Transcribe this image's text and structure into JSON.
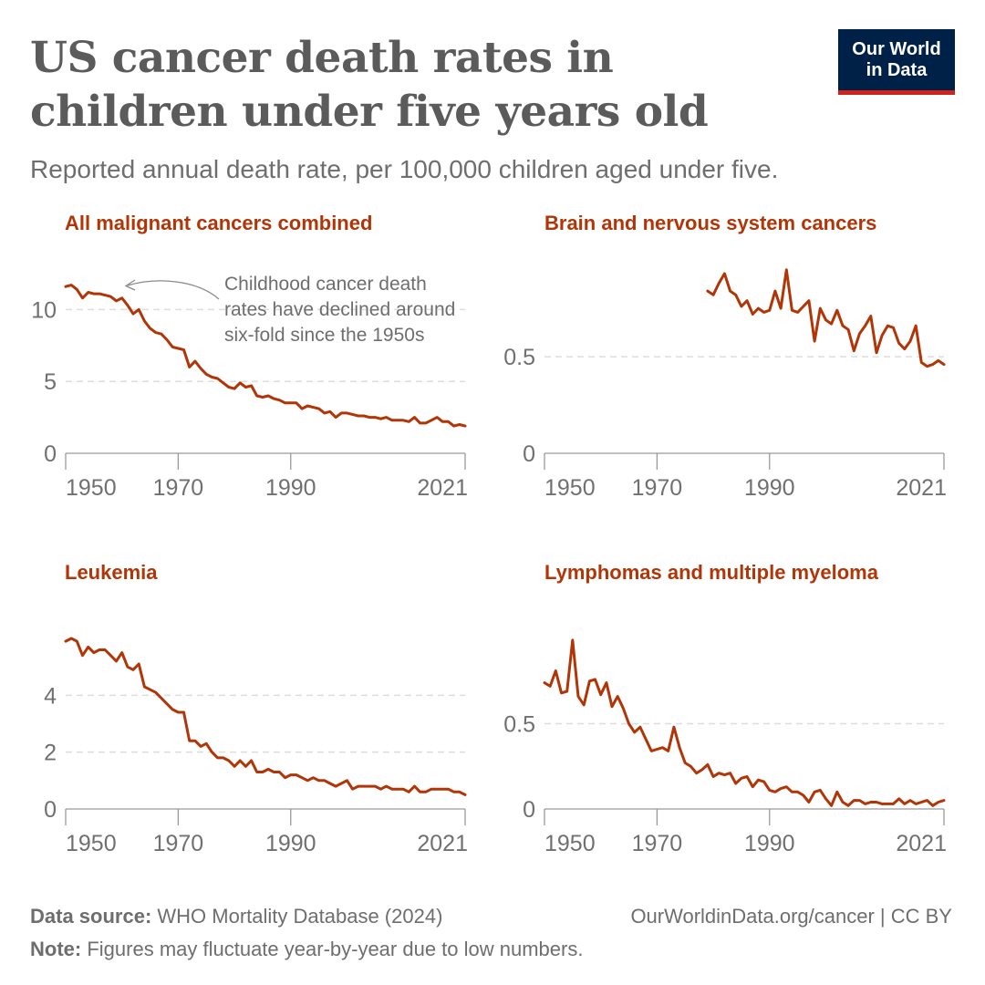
{
  "title": "US cancer death rates in children under five years old",
  "subtitle": "Reported annual death rate, per 100,000 children aged under five.",
  "logo": {
    "line1": "Our World",
    "line2": "in Data"
  },
  "footer": {
    "source_label": "Data source:",
    "source_value": "WHO Mortality Database (2024)",
    "credit": "OurWorldinData.org/cancer | CC BY",
    "note_label": "Note:",
    "note_value": "Figures may fluctuate year-by-year due to low numbers."
  },
  "colors": {
    "series": "#b13507",
    "title": "#5b5b5b",
    "logo_bg": "#002147",
    "logo_bar": "#ce261e"
  },
  "chart_data": [
    {
      "type": "line",
      "title": "All malignant cancers combined",
      "x_ticks": [
        "1950",
        "1970",
        "1990",
        "2021"
      ],
      "y_ticks": [
        "0",
        "5",
        "10"
      ],
      "xlim": [
        1950,
        2021
      ],
      "ylim": [
        0,
        12.5
      ],
      "annotation": [
        "Childhood cancer death",
        "rates have declined around",
        "six-fold since the 1950s"
      ],
      "x": [
        1950,
        1951,
        1952,
        1953,
        1954,
        1955,
        1956,
        1957,
        1958,
        1959,
        1960,
        1961,
        1962,
        1963,
        1964,
        1965,
        1966,
        1967,
        1968,
        1969,
        1970,
        1971,
        1972,
        1973,
        1974,
        1975,
        1976,
        1977,
        1978,
        1979,
        1980,
        1981,
        1982,
        1983,
        1984,
        1985,
        1986,
        1987,
        1988,
        1989,
        1990,
        1991,
        1992,
        1993,
        1994,
        1995,
        1996,
        1997,
        1998,
        1999,
        2000,
        2001,
        2002,
        2003,
        2004,
        2005,
        2006,
        2007,
        2008,
        2009,
        2010,
        2011,
        2012,
        2013,
        2014,
        2015,
        2016,
        2017,
        2018,
        2019,
        2020,
        2021
      ],
      "y": [
        11.6,
        11.7,
        11.4,
        10.8,
        11.2,
        11.1,
        11.1,
        11.0,
        10.9,
        10.6,
        10.8,
        10.3,
        9.7,
        10.0,
        9.2,
        8.7,
        8.4,
        8.3,
        7.9,
        7.4,
        7.3,
        7.2,
        6.0,
        6.4,
        5.9,
        5.5,
        5.3,
        5.2,
        4.9,
        4.6,
        4.5,
        4.9,
        4.6,
        4.7,
        4.0,
        3.9,
        4.0,
        3.8,
        3.7,
        3.5,
        3.5,
        3.5,
        3.1,
        3.3,
        3.2,
        3.1,
        2.8,
        2.9,
        2.5,
        2.8,
        2.8,
        2.7,
        2.6,
        2.6,
        2.5,
        2.5,
        2.4,
        2.5,
        2.3,
        2.3,
        2.3,
        2.2,
        2.5,
        2.1,
        2.1,
        2.3,
        2.5,
        2.2,
        2.2,
        1.9,
        2.0,
        1.9
      ]
    },
    {
      "type": "line",
      "title": "Brain and nervous system cancers",
      "x_ticks": [
        "1950",
        "1970",
        "1990",
        "2021"
      ],
      "y_ticks": [
        "0",
        "0.5"
      ],
      "xlim": [
        1950,
        2021
      ],
      "ylim": [
        0,
        0.93
      ],
      "x": [
        1979,
        1980,
        1981,
        1982,
        1983,
        1984,
        1985,
        1986,
        1987,
        1988,
        1989,
        1990,
        1991,
        1992,
        1993,
        1994,
        1995,
        1996,
        1997,
        1998,
        1999,
        2000,
        2001,
        2002,
        2003,
        2004,
        2005,
        2006,
        2007,
        2008,
        2009,
        2010,
        2011,
        2012,
        2013,
        2014,
        2015,
        2016,
        2017,
        2018,
        2019,
        2020,
        2021
      ],
      "y": [
        0.84,
        0.82,
        0.88,
        0.93,
        0.84,
        0.82,
        0.76,
        0.79,
        0.72,
        0.75,
        0.73,
        0.74,
        0.84,
        0.75,
        0.95,
        0.74,
        0.73,
        0.76,
        0.79,
        0.58,
        0.75,
        0.69,
        0.67,
        0.74,
        0.66,
        0.64,
        0.53,
        0.62,
        0.66,
        0.71,
        0.52,
        0.61,
        0.66,
        0.65,
        0.57,
        0.54,
        0.58,
        0.66,
        0.47,
        0.45,
        0.46,
        0.48,
        0.46
      ]
    },
    {
      "type": "line",
      "title": "Leukemia",
      "x_ticks": [
        "1950",
        "1970",
        "1990",
        "2021"
      ],
      "y_ticks": [
        "0",
        "2",
        "4"
      ],
      "xlim": [
        1950,
        2021
      ],
      "ylim": [
        0,
        6
      ],
      "x": [
        1950,
        1951,
        1952,
        1953,
        1954,
        1955,
        1956,
        1957,
        1958,
        1959,
        1960,
        1961,
        1962,
        1963,
        1964,
        1965,
        1966,
        1967,
        1968,
        1969,
        1970,
        1971,
        1972,
        1973,
        1974,
        1975,
        1976,
        1977,
        1978,
        1979,
        1980,
        1981,
        1982,
        1983,
        1984,
        1985,
        1986,
        1987,
        1988,
        1989,
        1990,
        1991,
        1992,
        1993,
        1994,
        1995,
        1996,
        1997,
        1998,
        1999,
        2000,
        2001,
        2002,
        2003,
        2004,
        2005,
        2006,
        2007,
        2008,
        2009,
        2010,
        2011,
        2012,
        2013,
        2014,
        2015,
        2016,
        2017,
        2018,
        2019,
        2020,
        2021
      ],
      "y": [
        5.9,
        6.0,
        5.9,
        5.4,
        5.7,
        5.5,
        5.6,
        5.6,
        5.4,
        5.2,
        5.5,
        5.0,
        4.9,
        5.1,
        4.3,
        4.2,
        4.1,
        3.9,
        3.7,
        3.5,
        3.4,
        3.4,
        2.4,
        2.4,
        2.2,
        2.3,
        2.0,
        1.8,
        1.8,
        1.7,
        1.5,
        1.7,
        1.5,
        1.7,
        1.3,
        1.3,
        1.4,
        1.3,
        1.3,
        1.1,
        1.2,
        1.2,
        1.1,
        1.0,
        1.1,
        1.0,
        1.0,
        0.9,
        0.8,
        0.9,
        1.0,
        0.7,
        0.8,
        0.8,
        0.8,
        0.8,
        0.7,
        0.8,
        0.7,
        0.7,
        0.7,
        0.6,
        0.8,
        0.6,
        0.6,
        0.7,
        0.7,
        0.7,
        0.7,
        0.6,
        0.6,
        0.5
      ]
    },
    {
      "type": "line",
      "title": "Lymphomas and multiple myeloma",
      "x_ticks": [
        "1950",
        "1970",
        "1990",
        "2021"
      ],
      "y_ticks": [
        "0",
        "0.5"
      ],
      "xlim": [
        1950,
        2021
      ],
      "ylim": [
        0,
        1.0
      ],
      "x": [
        1950,
        1951,
        1952,
        1953,
        1954,
        1955,
        1956,
        1957,
        1958,
        1959,
        1960,
        1961,
        1962,
        1963,
        1964,
        1965,
        1966,
        1967,
        1968,
        1969,
        1970,
        1971,
        1972,
        1973,
        1974,
        1975,
        1976,
        1977,
        1978,
        1979,
        1980,
        1981,
        1982,
        1983,
        1984,
        1985,
        1986,
        1987,
        1988,
        1989,
        1990,
        1991,
        1992,
        1993,
        1994,
        1995,
        1996,
        1997,
        1998,
        1999,
        2000,
        2001,
        2002,
        2003,
        2004,
        2005,
        2006,
        2007,
        2008,
        2009,
        2010,
        2011,
        2012,
        2013,
        2014,
        2015,
        2016,
        2017,
        2018,
        2019,
        2020,
        2021
      ],
      "y": [
        0.74,
        0.72,
        0.81,
        0.68,
        0.69,
        0.99,
        0.66,
        0.61,
        0.75,
        0.76,
        0.67,
        0.74,
        0.6,
        0.66,
        0.59,
        0.5,
        0.45,
        0.48,
        0.41,
        0.34,
        0.35,
        0.36,
        0.34,
        0.48,
        0.36,
        0.27,
        0.25,
        0.21,
        0.23,
        0.26,
        0.19,
        0.21,
        0.2,
        0.21,
        0.15,
        0.18,
        0.19,
        0.13,
        0.17,
        0.16,
        0.11,
        0.1,
        0.12,
        0.13,
        0.1,
        0.1,
        0.08,
        0.04,
        0.1,
        0.11,
        0.06,
        0.02,
        0.1,
        0.04,
        0.02,
        0.05,
        0.05,
        0.03,
        0.04,
        0.04,
        0.03,
        0.03,
        0.03,
        0.06,
        0.03,
        0.05,
        0.03,
        0.04,
        0.05,
        0.02,
        0.04,
        0.05
      ]
    }
  ]
}
